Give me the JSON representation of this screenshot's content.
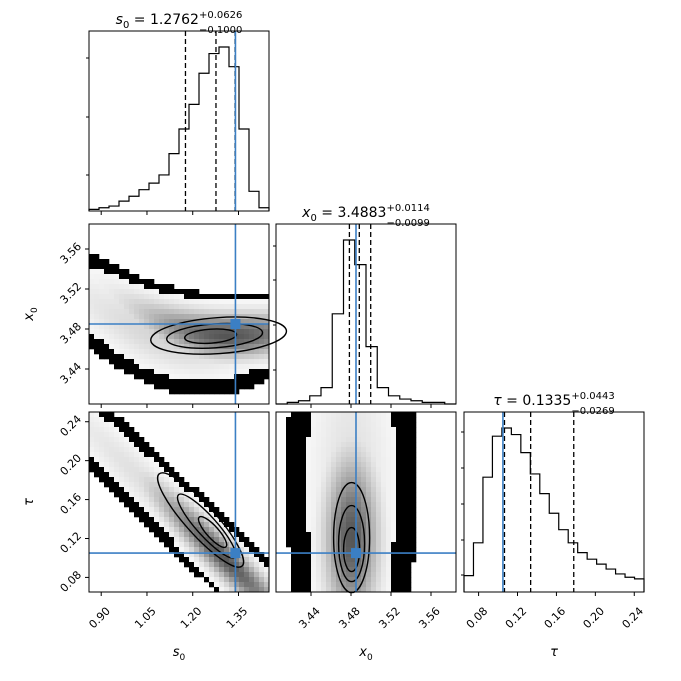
{
  "chart_data": {
    "type": "corner",
    "truth_color": "#3b7fc4",
    "hist_color": "#000000",
    "parameters": [
      {
        "name": "s0",
        "label_main": "s",
        "label_sub": "0",
        "median": 1.2762,
        "plus": "+0.0626",
        "minus": "−0.1000",
        "median_text": "1.2762",
        "truth": 1.34,
        "range": [
          0.86,
          1.45
        ],
        "ticks": [
          "0.90",
          "1.05",
          "1.20",
          "1.35"
        ],
        "tick_values": [
          0.9,
          1.05,
          1.2,
          1.35
        ],
        "quantiles": [
          1.1762,
          1.2762,
          1.3388
        ]
      },
      {
        "name": "x0",
        "label_main": "x",
        "label_sub": "0",
        "median": 3.4883,
        "plus": "+0.0114",
        "minus": "−0.0099",
        "median_text": "3.4883",
        "truth": 3.485,
        "range": [
          3.405,
          3.585
        ],
        "ticks": [
          "3.44",
          "3.48",
          "3.52",
          "3.56"
        ],
        "tick_values": [
          3.44,
          3.48,
          3.52,
          3.56
        ],
        "quantiles": [
          3.4784,
          3.4883,
          3.4997
        ]
      },
      {
        "name": "tau",
        "label_main": "τ",
        "label_sub": "",
        "median": 0.1335,
        "plus": "+0.0443",
        "minus": "−0.0269",
        "median_text": "0.1335",
        "truth": 0.105,
        "range": [
          0.065,
          0.25
        ],
        "ticks": [
          "0.08",
          "0.12",
          "0.16",
          "0.20",
          "0.24"
        ],
        "tick_values": [
          0.08,
          0.12,
          0.16,
          0.2,
          0.24
        ],
        "quantiles": [
          0.1066,
          0.1335,
          0.1778
        ]
      }
    ],
    "histograms": {
      "s0": [
        0.01,
        0.02,
        0.03,
        0.06,
        0.09,
        0.13,
        0.17,
        0.22,
        0.35,
        0.5,
        0.65,
        0.84,
        0.96,
        1.0,
        0.88,
        0.5,
        0.12,
        0.02
      ],
      "x0": [
        0.0,
        0.01,
        0.02,
        0.05,
        0.1,
        0.55,
        1.0,
        0.85,
        0.35,
        0.1,
        0.05,
        0.03,
        0.02,
        0.01,
        0.01,
        0.0
      ],
      "tau": [
        0.1,
        0.3,
        0.7,
        0.95,
        1.0,
        0.96,
        0.85,
        0.72,
        0.6,
        0.48,
        0.38,
        0.3,
        0.24,
        0.2,
        0.17,
        0.14,
        0.11,
        0.09,
        0.08
      ]
    },
    "joint_panels": [
      {
        "x": "s0",
        "y": "x0"
      },
      {
        "x": "s0",
        "y": "tau"
      },
      {
        "x": "x0",
        "y": "tau"
      }
    ]
  }
}
